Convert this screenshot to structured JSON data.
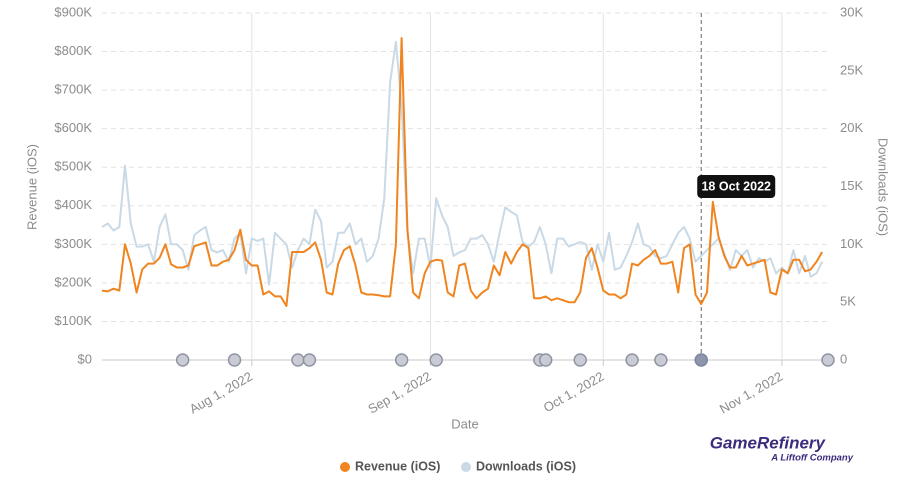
{
  "chart_data": {
    "type": "line",
    "x_label": "Date",
    "y_label": "Revenue (iOS)",
    "y2_label": "Downloads (iOS)",
    "x": [
      "2022-07-06",
      "2022-07-07",
      "2022-07-08",
      "2022-07-09",
      "2022-07-10",
      "2022-07-11",
      "2022-07-12",
      "2022-07-13",
      "2022-07-14",
      "2022-07-15",
      "2022-07-16",
      "2022-07-17",
      "2022-07-18",
      "2022-07-19",
      "2022-07-20",
      "2022-07-21",
      "2022-07-22",
      "2022-07-23",
      "2022-07-24",
      "2022-07-25",
      "2022-07-26",
      "2022-07-27",
      "2022-07-28",
      "2022-07-29",
      "2022-07-30",
      "2022-07-31",
      "2022-08-01",
      "2022-08-02",
      "2022-08-03",
      "2022-08-04",
      "2022-08-05",
      "2022-08-06",
      "2022-08-07",
      "2022-08-08",
      "2022-08-09",
      "2022-08-10",
      "2022-08-11",
      "2022-08-12",
      "2022-08-13",
      "2022-08-14",
      "2022-08-15",
      "2022-08-16",
      "2022-08-17",
      "2022-08-18",
      "2022-08-19",
      "2022-08-20",
      "2022-08-21",
      "2022-08-22",
      "2022-08-23",
      "2022-08-24",
      "2022-08-25",
      "2022-08-26",
      "2022-08-27",
      "2022-08-28",
      "2022-08-29",
      "2022-08-30",
      "2022-08-31",
      "2022-09-01",
      "2022-09-02",
      "2022-09-03",
      "2022-09-04",
      "2022-09-05",
      "2022-09-06",
      "2022-09-07",
      "2022-09-08",
      "2022-09-09",
      "2022-09-10",
      "2022-09-11",
      "2022-09-12",
      "2022-09-13",
      "2022-09-14",
      "2022-09-15",
      "2022-09-16",
      "2022-09-17",
      "2022-09-18",
      "2022-09-19",
      "2022-09-20",
      "2022-09-21",
      "2022-09-22",
      "2022-09-23",
      "2022-09-24",
      "2022-09-25",
      "2022-09-26",
      "2022-09-27",
      "2022-09-28",
      "2022-09-29",
      "2022-09-30",
      "2022-10-01",
      "2022-10-02",
      "2022-10-03",
      "2022-10-04",
      "2022-10-05",
      "2022-10-06",
      "2022-10-07",
      "2022-10-08",
      "2022-10-09",
      "2022-10-10",
      "2022-10-11",
      "2022-10-12",
      "2022-10-13",
      "2022-10-14",
      "2022-10-15",
      "2022-10-16",
      "2022-10-17",
      "2022-10-18",
      "2022-10-19",
      "2022-10-20",
      "2022-10-21",
      "2022-10-22",
      "2022-10-23",
      "2022-10-24",
      "2022-10-25",
      "2022-10-26",
      "2022-10-27",
      "2022-10-28",
      "2022-10-29",
      "2022-10-30",
      "2022-10-31",
      "2022-11-01",
      "2022-11-02",
      "2022-11-03",
      "2022-11-04",
      "2022-11-05",
      "2022-11-06",
      "2022-11-07",
      "2022-11-08"
    ],
    "series": [
      {
        "name": "Revenue (iOS)",
        "color": "#f0841f",
        "axis": "y",
        "values": [
          180000,
          178000,
          185000,
          180000,
          300000,
          250000,
          175000,
          235000,
          250000,
          250000,
          265000,
          300000,
          248000,
          240000,
          240000,
          245000,
          295000,
          300000,
          305000,
          245000,
          245000,
          255000,
          260000,
          285000,
          338000,
          260000,
          245000,
          245000,
          170000,
          178000,
          165000,
          165000,
          140000,
          280000,
          280000,
          280000,
          290000,
          305000,
          260000,
          175000,
          170000,
          250000,
          285000,
          295000,
          245000,
          175000,
          170000,
          170000,
          168000,
          165000,
          165000,
          300000,
          835000,
          340000,
          175000,
          160000,
          225000,
          255000,
          260000,
          258000,
          175000,
          165000,
          245000,
          250000,
          180000,
          160000,
          175000,
          185000,
          245000,
          220000,
          280000,
          250000,
          280000,
          300000,
          290000,
          160000,
          160000,
          165000,
          155000,
          160000,
          155000,
          150000,
          150000,
          175000,
          265000,
          290000,
          240000,
          180000,
          170000,
          170000,
          160000,
          170000,
          250000,
          245000,
          260000,
          270000,
          285000,
          250000,
          250000,
          255000,
          175000,
          290000,
          300000,
          170000,
          145000,
          175000,
          410000,
          320000,
          270000,
          240000,
          240000,
          270000,
          245000,
          250000,
          255000,
          260000,
          175000,
          170000,
          235000,
          225000,
          260000,
          260000,
          230000,
          235000,
          255000,
          280000
        ]
      },
      {
        "name": "Downloads (iOS)",
        "color": "#c9d9e6",
        "axis": "y2",
        "values": [
          11500,
          11800,
          11200,
          11500,
          16800,
          11800,
          9800,
          9800,
          10000,
          8500,
          11500,
          12600,
          10000,
          10000,
          9500,
          7800,
          10800,
          11200,
          11500,
          9500,
          9300,
          9500,
          8500,
          10500,
          11000,
          7500,
          10500,
          10300,
          10500,
          6500,
          11000,
          10500,
          10000,
          8000,
          9500,
          10500,
          10000,
          13000,
          12000,
          8000,
          8500,
          11000,
          11000,
          11800,
          10000,
          10500,
          8500,
          9000,
          10500,
          14000,
          24000,
          27500,
          22000,
          11000,
          7500,
          10500,
          10500,
          8000,
          14000,
          12500,
          11500,
          9000,
          9300,
          9500,
          10500,
          10500,
          10800,
          10000,
          8500,
          11000,
          13200,
          12800,
          12500,
          10200,
          9800,
          10200,
          11500,
          10000,
          7500,
          10500,
          10500,
          9800,
          10000,
          10200,
          10000,
          7800,
          10000,
          8500,
          11000,
          7800,
          8000,
          9000,
          10200,
          11800,
          10000,
          9800,
          9000,
          8800,
          9000,
          10000,
          11000,
          11500,
          10500,
          8500,
          9000,
          9500,
          10000,
          10500,
          9200,
          7800,
          9500,
          9000,
          9500,
          8000,
          8800,
          8500,
          8800,
          7500,
          8000,
          7500,
          9500,
          7500,
          9000,
          7200,
          7500,
          8500
        ]
      }
    ],
    "xlim": [
      "2022-07-06",
      "2022-11-09"
    ],
    "xticks": [
      {
        "value": "2022-08-01",
        "label": "Aug 1, 2022"
      },
      {
        "value": "2022-09-01",
        "label": "Sep 1, 2022"
      },
      {
        "value": "2022-10-01",
        "label": "Oct 1, 2022"
      },
      {
        "value": "2022-11-01",
        "label": "Nov 1, 2022"
      }
    ],
    "ylim": [
      0,
      900000
    ],
    "yticks": [
      {
        "value": 0,
        "label": "$0"
      },
      {
        "value": 100000,
        "label": "$100K"
      },
      {
        "value": 200000,
        "label": "$200K"
      },
      {
        "value": 300000,
        "label": "$300K"
      },
      {
        "value": 400000,
        "label": "$400K"
      },
      {
        "value": 500000,
        "label": "$500K"
      },
      {
        "value": 600000,
        "label": "$600K"
      },
      {
        "value": 700000,
        "label": "$700K"
      },
      {
        "value": 800000,
        "label": "$800K"
      },
      {
        "value": 900000,
        "label": "$900K"
      }
    ],
    "y2lim": [
      0,
      30000
    ],
    "y2ticks": [
      0,
      {
        "value": 5000,
        "label": "5K"
      },
      {
        "value": 10000,
        "label": "10K"
      },
      {
        "value": 15000,
        "label": "15K"
      },
      {
        "value": 20000,
        "label": "20K"
      },
      {
        "value": 25000,
        "label": "25K"
      },
      {
        "value": 30000,
        "label": "30K"
      }
    ],
    "grid": true,
    "events": [
      "2022-07-20",
      "2022-07-29",
      "2022-08-09",
      "2022-08-11",
      "2022-08-27",
      "2022-09-02",
      "2022-09-20",
      "2022-09-21",
      "2022-09-27",
      "2022-10-06",
      "2022-10-11",
      "2022-10-18",
      "2022-11-09"
    ],
    "tooltip": {
      "date": "2022-10-18",
      "label": "18 Oct 2022"
    }
  },
  "branding": {
    "name": "GameRefinery",
    "tagline": "A Liftoff Company"
  }
}
